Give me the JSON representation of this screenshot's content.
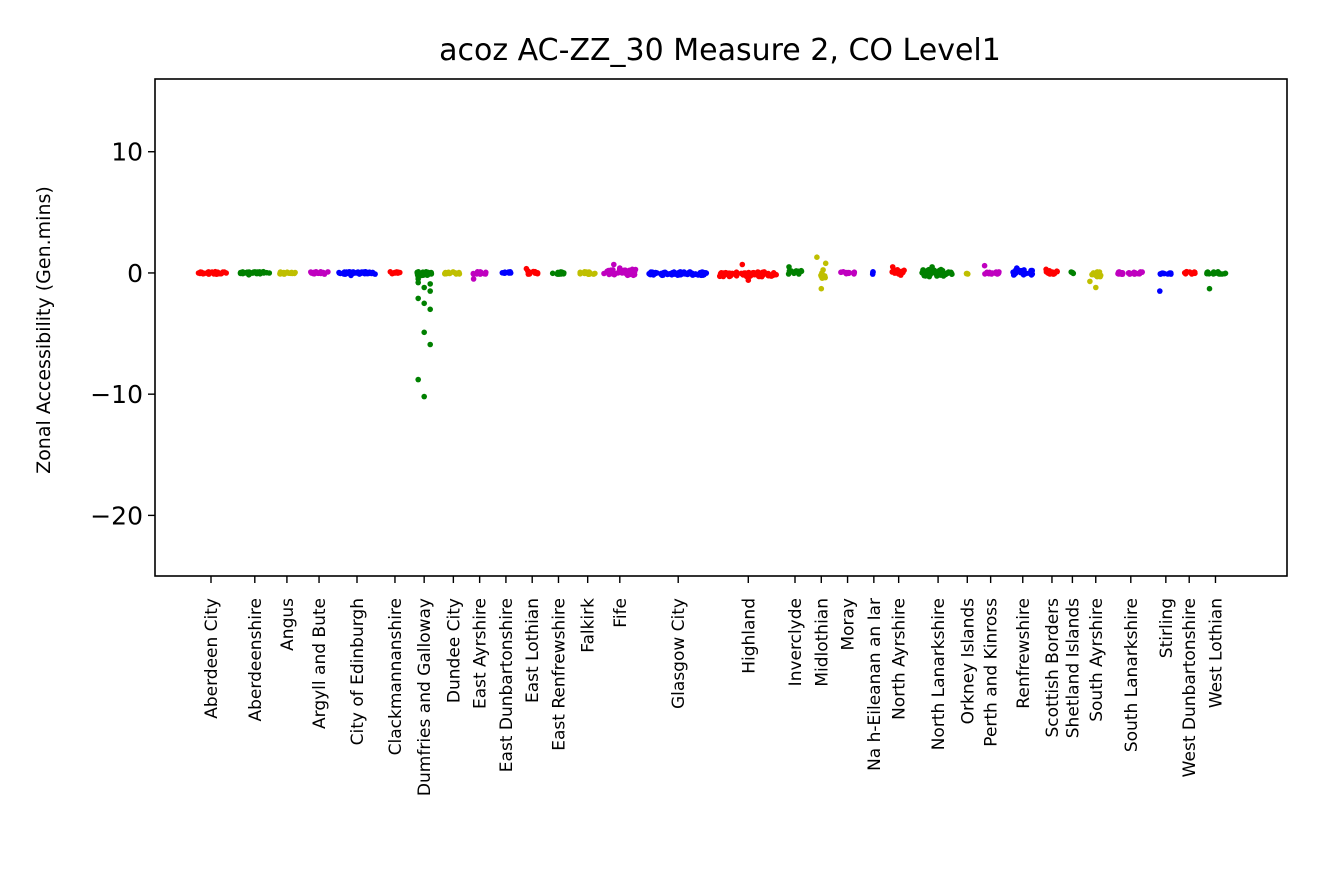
{
  "chart_data": {
    "type": "scatter",
    "title": "acoz AC-ZZ_30  Measure 2, CO Level1",
    "xlabel": "",
    "ylabel": "Zonal Accessibility (Gen.mins)",
    "ylim": [
      -25,
      16
    ],
    "yticks": [
      10,
      0,
      -10,
      -20
    ],
    "ytick_labels": [
      "10",
      "0",
      "−10",
      "−20"
    ],
    "grid": false,
    "legend": "none",
    "categories": [
      "Aberdeen City",
      "Aberdeenshire",
      "Angus",
      "Argyll and Bute",
      "City of Edinburgh",
      "Clackmannanshire",
      "Dumfries and Galloway",
      "Dundee City",
      "East Ayrshire",
      "East Dunbartonshire",
      "East Lothian",
      "East Renfrewshire",
      "Falkirk",
      "Fife",
      "Glasgow City",
      "Highland",
      "Inverclyde",
      "Midlothian",
      "Moray",
      "Na h-Eileanan an Iar",
      "North Ayrshire",
      "North Lanarkshire",
      "Orkney Islands",
      "Perth and Kinross",
      "Renfrewshire",
      "Scottish Borders",
      "Shetland Islands",
      "South Ayrshire",
      "South Lanarkshire",
      "Stirling",
      "West Dunbartonshire",
      "West Lothian"
    ],
    "groups": [
      {
        "category": "Aberdeen City",
        "pos": 0,
        "width": 1.1,
        "color": "#ff0000",
        "n": 34,
        "values": [
          0.1,
          -0.1
        ],
        "extra": []
      },
      {
        "category": "Aberdeenshire",
        "pos": 1.5,
        "width": 1.0,
        "color": "#008000",
        "n": 34,
        "values": [
          0.1,
          -0.1
        ],
        "extra": [
          -0.15
        ]
      },
      {
        "category": "Angus",
        "pos": 2.6,
        "width": 0.6,
        "color": "#bfbf00",
        "n": 18,
        "values": [
          0.1,
          -0.1
        ],
        "extra": []
      },
      {
        "category": "Argyll and Bute",
        "pos": 3.7,
        "width": 0.7,
        "color": "#bf00bf",
        "n": 18,
        "values": [
          0.1,
          -0.1
        ],
        "extra": []
      },
      {
        "category": "City of Edinburgh",
        "pos": 5.0,
        "width": 1.3,
        "color": "#0000ff",
        "n": 40,
        "values": [
          0.1,
          -0.1
        ],
        "extra": [
          -0.2
        ]
      },
      {
        "category": "Clackmannanshire",
        "pos": 6.3,
        "width": 0.35,
        "color": "#ff0000",
        "n": 10,
        "values": [
          0.1,
          -0.1
        ],
        "extra": []
      },
      {
        "category": "Dumfries and Galloway",
        "pos": 7.3,
        "width": 0.5,
        "color": "#008000",
        "n": 26,
        "values": [
          0.1,
          -0.2
        ],
        "extra": [
          -0.8,
          -1.2,
          -1.5,
          -2.1,
          -2.5,
          -3.0,
          -0.5,
          -4.9,
          -5.9,
          -8.8,
          -10.2,
          -0.9,
          -0.3
        ]
      },
      {
        "category": "Dundee City",
        "pos": 8.3,
        "width": 0.6,
        "color": "#bfbf00",
        "n": 16,
        "values": [
          0.1,
          -0.1
        ],
        "extra": []
      },
      {
        "category": "East Ayrshire",
        "pos": 9.2,
        "width": 0.5,
        "color": "#bf00bf",
        "n": 14,
        "values": [
          0.1,
          -0.1
        ],
        "extra": [
          -0.5
        ]
      },
      {
        "category": "East Dunbartonshire",
        "pos": 10.1,
        "width": 0.35,
        "color": "#0000ff",
        "n": 10,
        "values": [
          0.1,
          -0.1
        ],
        "extra": []
      },
      {
        "category": "East Lothian",
        "pos": 11.0,
        "width": 0.4,
        "color": "#ff0000",
        "n": 14,
        "values": [
          0.2,
          -0.1
        ],
        "extra": [
          0.35
        ]
      },
      {
        "category": "East Renfrewshire",
        "pos": 11.9,
        "width": 0.4,
        "color": "#008000",
        "n": 12,
        "values": [
          0.1,
          -0.1
        ],
        "extra": []
      },
      {
        "category": "Falkirk",
        "pos": 12.9,
        "width": 0.6,
        "color": "#bfbf00",
        "n": 18,
        "values": [
          0.1,
          -0.1
        ],
        "extra": []
      },
      {
        "category": "Fife",
        "pos": 14.0,
        "width": 1.1,
        "color": "#bf00bf",
        "n": 40,
        "values": [
          0.3,
          -0.2
        ],
        "extra": [
          0.7,
          0.4
        ]
      },
      {
        "category": "Glasgow City",
        "pos": 16.0,
        "width": 2.0,
        "color": "#0000ff",
        "n": 70,
        "values": [
          0.1,
          -0.2
        ],
        "extra": []
      },
      {
        "category": "Highland",
        "pos": 18.4,
        "width": 2.0,
        "color": "#ff0000",
        "n": 70,
        "values": [
          0.1,
          -0.3
        ],
        "extra": [
          0.7,
          -0.6
        ]
      },
      {
        "category": "Inverclyde",
        "pos": 20.0,
        "width": 0.45,
        "color": "#008000",
        "n": 10,
        "values": [
          0.2,
          -0.1
        ],
        "extra": [
          0.5
        ]
      },
      {
        "category": "Midlothian",
        "pos": 20.9,
        "width": 0.3,
        "color": "#bfbf00",
        "n": 8,
        "values": [
          0.3,
          -0.5
        ],
        "extra": [
          1.3,
          -1.3,
          0.8
        ]
      },
      {
        "category": "Moray",
        "pos": 21.8,
        "width": 0.5,
        "color": "#bf00bf",
        "n": 12,
        "values": [
          0.1,
          -0.1
        ],
        "extra": []
      },
      {
        "category": "Na h-Eileanan an Iar",
        "pos": 22.7,
        "width": 0.1,
        "color": "#0000ff",
        "n": 3,
        "values": [
          0.1,
          -0.1
        ],
        "extra": []
      },
      {
        "category": "North Ayrshire",
        "pos": 23.55,
        "width": 0.45,
        "color": "#ff0000",
        "n": 16,
        "values": [
          0.3,
          -0.2
        ],
        "extra": [
          0.5
        ]
      },
      {
        "category": "North Lanarkshire",
        "pos": 24.9,
        "width": 1.1,
        "color": "#008000",
        "n": 40,
        "values": [
          0.3,
          -0.3
        ],
        "extra": [
          0.5
        ]
      },
      {
        "category": "Orkney Islands",
        "pos": 25.9,
        "width": 0.1,
        "color": "#bfbf00",
        "n": 3,
        "values": [
          0.1,
          -0.1
        ],
        "extra": []
      },
      {
        "category": "Perth and Kinross",
        "pos": 26.7,
        "width": 0.6,
        "color": "#bf00bf",
        "n": 20,
        "values": [
          0.1,
          -0.1
        ],
        "extra": [
          0.6
        ]
      },
      {
        "category": "Renfrewshire",
        "pos": 27.8,
        "width": 0.7,
        "color": "#0000ff",
        "n": 22,
        "values": [
          0.3,
          -0.2
        ],
        "extra": [
          0.4
        ]
      },
      {
        "category": "Scottish Borders",
        "pos": 28.8,
        "width": 0.4,
        "color": "#ff0000",
        "n": 14,
        "values": [
          0.2,
          -0.1
        ],
        "extra": [
          0.3
        ]
      },
      {
        "category": "Shetland Islands",
        "pos": 29.5,
        "width": 0.1,
        "color": "#008000",
        "n": 3,
        "values": [
          0.1,
          -0.1
        ],
        "extra": []
      },
      {
        "category": "South Ayrshire",
        "pos": 30.3,
        "width": 0.4,
        "color": "#bfbf00",
        "n": 12,
        "values": [
          0.1,
          -0.3
        ],
        "extra": [
          -0.7,
          -1.2
        ]
      },
      {
        "category": "South Lanarkshire",
        "pos": 31.5,
        "width": 0.9,
        "color": "#bf00bf",
        "n": 30,
        "values": [
          0.1,
          -0.1
        ],
        "extra": []
      },
      {
        "category": "Stirling",
        "pos": 32.7,
        "width": 0.5,
        "color": "#0000ff",
        "n": 10,
        "values": [
          0.0,
          -0.1
        ],
        "extra": [
          -1.5
        ]
      },
      {
        "category": "West Dunbartonshire",
        "pos": 33.5,
        "width": 0.4,
        "color": "#ff0000",
        "n": 12,
        "values": [
          0.1,
          -0.1
        ],
        "extra": []
      },
      {
        "category": "West Lothian",
        "pos": 34.4,
        "width": 0.7,
        "color": "#008000",
        "n": 20,
        "values": [
          0.1,
          -0.1
        ],
        "extra": [
          -1.3
        ]
      }
    ]
  }
}
